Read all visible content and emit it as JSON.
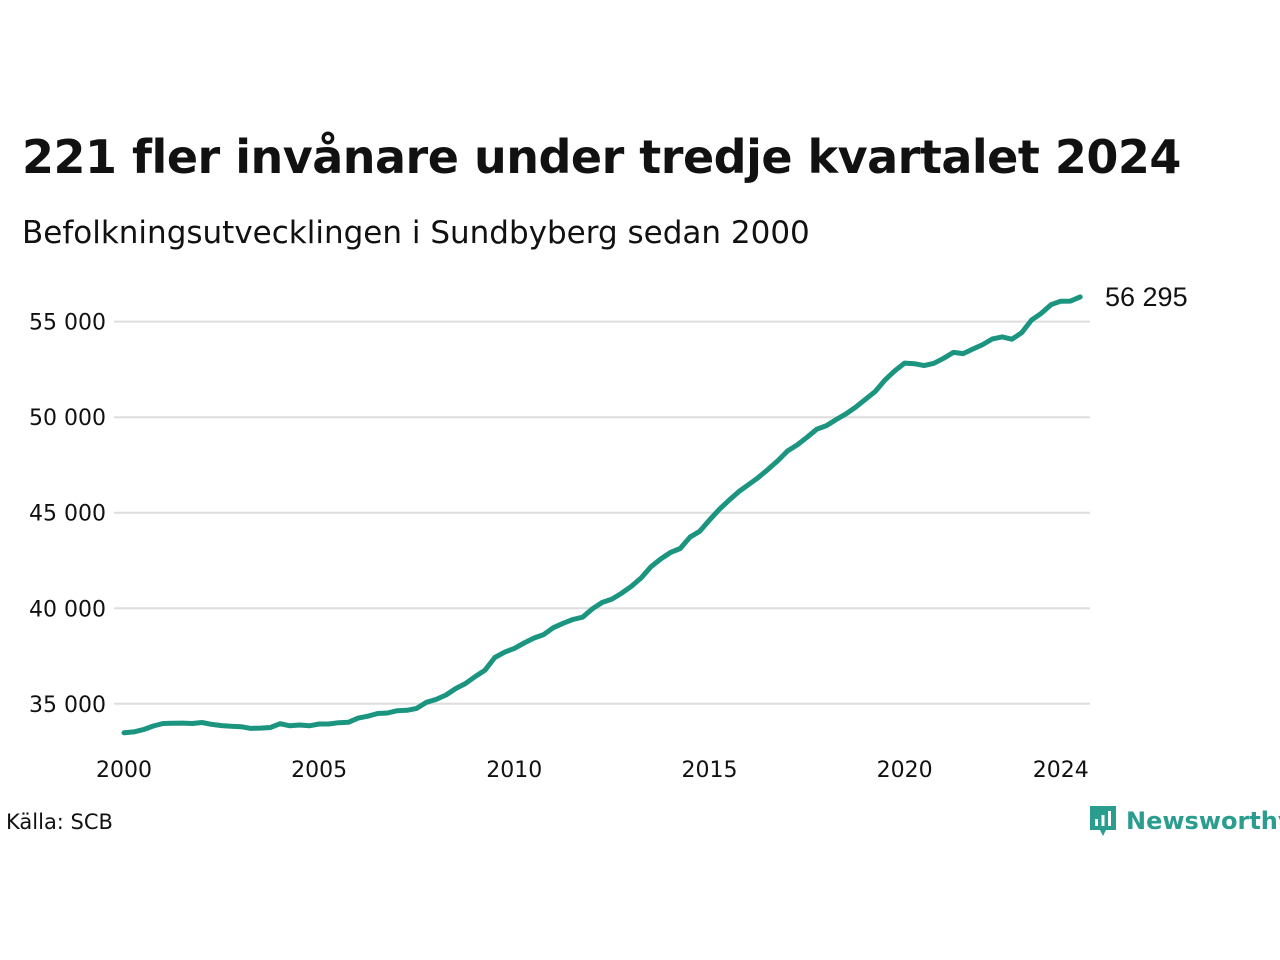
{
  "title": "221 fler invånare under tredje kvartalet 2024",
  "subtitle": "Befolkningsutvecklingen i Sundbyberg sedan 2000",
  "source": "Källa: SCB",
  "brand": "Newsworthy",
  "colors": {
    "line": "#1b9580",
    "grid": "#dddddd",
    "brand": "#2a9d8f"
  },
  "chart_data": {
    "type": "line",
    "title": "221 fler invånare under tredje kvartalet 2024",
    "subtitle": "Befolkningsutvecklingen i Sundbyberg sedan 2000",
    "xlim": [
      2000,
      2024.75
    ],
    "ylim": [
      33000,
      56500
    ],
    "grid": true,
    "x_ticks": [
      {
        "value": 2000,
        "label": "2000"
      },
      {
        "value": 2005,
        "label": "2005"
      },
      {
        "value": 2010,
        "label": "2010"
      },
      {
        "value": 2015,
        "label": "2015"
      },
      {
        "value": 2020,
        "label": "2020"
      },
      {
        "value": 2024,
        "label": "2024"
      }
    ],
    "y_ticks": [
      {
        "value": 35000,
        "label": "35 000"
      },
      {
        "value": 40000,
        "label": "40 000"
      },
      {
        "value": 45000,
        "label": "45 000"
      },
      {
        "value": 50000,
        "label": "50 000"
      },
      {
        "value": 55000,
        "label": "55 000"
      }
    ],
    "end_label": "56 295",
    "x": [
      2000.0,
      2000.25,
      2000.5,
      2000.75,
      2001.0,
      2001.25,
      2001.5,
      2001.75,
      2002.0,
      2002.25,
      2002.5,
      2002.75,
      2003.0,
      2003.25,
      2003.5,
      2003.75,
      2004.0,
      2004.25,
      2004.5,
      2004.75,
      2005.0,
      2005.25,
      2005.5,
      2005.75,
      2006.0,
      2006.25,
      2006.5,
      2006.75,
      2007.0,
      2007.25,
      2007.5,
      2007.75,
      2008.0,
      2008.25,
      2008.5,
      2008.75,
      2009.0,
      2009.25,
      2009.5,
      2009.75,
      2010.0,
      2010.25,
      2010.5,
      2010.75,
      2011.0,
      2011.25,
      2011.5,
      2011.75,
      2012.0,
      2012.25,
      2012.5,
      2012.75,
      2013.0,
      2013.25,
      2013.5,
      2013.75,
      2014.0,
      2014.25,
      2014.5,
      2014.75,
      2015.0,
      2015.25,
      2015.5,
      2015.75,
      2016.0,
      2016.25,
      2016.5,
      2016.75,
      2017.0,
      2017.25,
      2017.5,
      2017.75,
      2018.0,
      2018.25,
      2018.5,
      2018.75,
      2019.0,
      2019.25,
      2019.5,
      2019.75,
      2020.0,
      2020.25,
      2020.5,
      2020.75,
      2021.0,
      2021.25,
      2021.5,
      2021.75,
      2022.0,
      2022.25,
      2022.5,
      2022.75,
      2023.0,
      2023.25,
      2023.5,
      2023.75,
      2024.0,
      2024.25,
      2024.5
    ],
    "series": [
      {
        "values": [
          33480,
          33530,
          33650,
          33840,
          33970,
          33980,
          33990,
          33970,
          34020,
          33920,
          33860,
          33820,
          33800,
          33710,
          33730,
          33760,
          33960,
          33850,
          33890,
          33850,
          33940,
          33940,
          34010,
          34030,
          34250,
          34350,
          34490,
          34520,
          34640,
          34660,
          34760,
          35080,
          35230,
          35460,
          35800,
          36060,
          36430,
          36760,
          37420,
          37700,
          37900,
          38180,
          38440,
          38620,
          38980,
          39210,
          39410,
          39530,
          39970,
          40300,
          40480,
          40790,
          41150,
          41590,
          42170,
          42580,
          42920,
          43130,
          43720,
          44030,
          44620,
          45170,
          45650,
          46100,
          46470,
          46840,
          47270,
          47720,
          48230,
          48550,
          48950,
          49370,
          49560,
          49880,
          50180,
          50530,
          50940,
          51350,
          51950,
          52430,
          52830,
          52800,
          52700,
          52820,
          53080,
          53390,
          53330,
          53570,
          53800,
          54100,
          54200,
          54080,
          54420,
          55080,
          55430,
          55890,
          56070,
          56074,
          56295
        ]
      }
    ]
  }
}
